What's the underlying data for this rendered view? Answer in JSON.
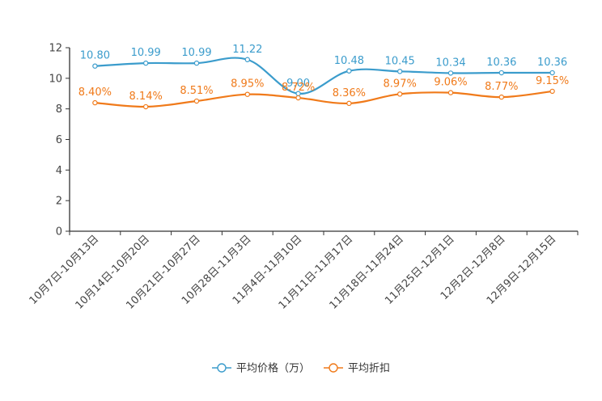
{
  "chart_data": {
    "type": "line",
    "title": "",
    "xlabel": "",
    "ylabel": "",
    "ylim": [
      0,
      12
    ],
    "yticks": [
      0,
      2,
      4,
      6,
      8,
      10,
      12
    ],
    "categories": [
      "10月7日-10月13日",
      "10月14日-10月20日",
      "10月21日-10月27日",
      "10月28日-11月3日",
      "11月4日-11月10日",
      "11月11日-11月17日",
      "11月18日-11月24日",
      "11月25日-12月1日",
      "12月2日-12月8日",
      "12月9日-12月15日"
    ],
    "series": [
      {
        "name": "平均价格（万）",
        "color": "#3b9ccc",
        "values": [
          10.8,
          10.99,
          10.99,
          11.22,
          9.0,
          10.48,
          10.45,
          10.34,
          10.36,
          10.36
        ],
        "labels": [
          "10.80",
          "10.99",
          "10.99",
          "11.22",
          "9.00",
          "10.48",
          "10.45",
          "10.34",
          "10.36",
          "10.36"
        ]
      },
      {
        "name": "平均折扣",
        "color": "#f07a1a",
        "values": [
          8.4,
          8.14,
          8.51,
          8.95,
          8.72,
          8.36,
          8.97,
          9.06,
          8.77,
          9.15
        ],
        "labels": [
          "8.40%",
          "8.14%",
          "8.51%",
          "8.95%",
          "8.72%",
          "8.36%",
          "8.97%",
          "9.06%",
          "8.77%",
          "9.15%"
        ]
      }
    ],
    "legend_position": "bottom-center",
    "grid": false
  }
}
